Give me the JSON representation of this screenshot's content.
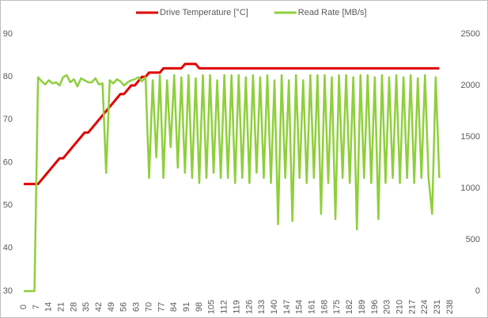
{
  "chart_data": {
    "type": "line",
    "x": [
      0,
      2,
      4,
      6,
      8,
      10,
      12,
      14,
      16,
      18,
      20,
      22,
      24,
      26,
      28,
      30,
      32,
      34,
      36,
      38,
      40,
      42,
      44,
      46,
      48,
      50,
      52,
      54,
      56,
      58,
      60,
      62,
      64,
      66,
      68,
      70,
      72,
      74,
      76,
      78,
      80,
      82,
      84,
      86,
      88,
      90,
      92,
      94,
      96,
      98,
      100,
      102,
      104,
      106,
      108,
      110,
      112,
      114,
      116,
      118,
      120,
      122,
      124,
      126,
      128,
      130,
      132,
      134,
      136,
      138,
      140,
      142,
      144,
      146,
      148,
      150,
      152,
      154,
      156,
      158,
      160,
      162,
      164,
      166,
      168,
      170,
      172,
      174,
      176,
      178,
      180,
      182,
      184,
      186,
      188,
      190,
      192,
      194,
      196,
      198,
      200,
      202,
      204,
      206,
      208,
      210,
      212,
      214,
      216,
      218,
      220,
      222,
      224,
      226,
      228,
      230,
      232
    ],
    "series": [
      {
        "name": "Drive Temperature [°C]",
        "color": "#e00000",
        "axis": "y",
        "values": [
          55,
          55,
          55,
          55,
          55,
          56,
          57,
          58,
          59,
          60,
          61,
          61,
          62,
          63,
          64,
          65,
          66,
          67,
          67,
          68,
          69,
          70,
          71,
          72,
          73,
          74,
          75,
          76,
          76,
          77,
          78,
          78,
          79,
          80,
          80,
          81,
          81,
          81,
          81,
          82,
          82,
          82,
          82,
          82,
          82,
          83,
          83,
          83,
          83,
          82,
          82,
          82,
          82,
          82,
          82,
          82,
          82,
          82,
          82,
          82,
          82,
          82,
          82,
          82,
          82,
          82,
          82,
          82,
          82,
          82,
          82,
          82,
          82,
          82,
          82,
          82,
          82,
          82,
          82,
          82,
          82,
          82,
          82,
          82,
          82,
          82,
          82,
          82,
          82,
          82,
          82,
          82,
          82,
          82,
          82,
          82,
          82,
          82,
          82,
          82,
          82,
          82,
          82,
          82,
          82,
          82,
          82,
          82,
          82,
          82,
          82,
          82,
          82,
          82,
          82,
          82,
          82
        ]
      },
      {
        "name": "Read Rate [MB/s]",
        "color": "#8fcf3c",
        "axis": "y2",
        "values": [
          0,
          0,
          0,
          0,
          2080,
          2040,
          2010,
          2050,
          2020,
          2030,
          2000,
          2080,
          2100,
          2030,
          2060,
          1990,
          2070,
          2050,
          2030,
          2030,
          2070,
          2010,
          2020,
          1150,
          2050,
          2020,
          2060,
          2040,
          2000,
          2030,
          2050,
          2060,
          2080,
          2040,
          2080,
          1100,
          2050,
          1300,
          2100,
          1100,
          2050,
          1400,
          2100,
          1200,
          2080,
          1150,
          2100,
          1100,
          2070,
          1050,
          2100,
          1100,
          2100,
          1150,
          2050,
          1100,
          2100,
          1100,
          2100,
          1050,
          2100,
          1100,
          2080,
          1050,
          2100,
          1150,
          2080,
          1100,
          2100,
          1050,
          2050,
          650,
          2100,
          1100,
          2050,
          680,
          2100,
          1100,
          2050,
          1050,
          2100,
          1100,
          2100,
          750,
          2100,
          1050,
          2080,
          700,
          2100,
          1100,
          2100,
          1050,
          2080,
          600,
          2100,
          1100,
          2100,
          1050,
          2080,
          700,
          2100,
          1050,
          2080,
          1100,
          2100,
          1050,
          2080,
          1100,
          2100,
          1050,
          2070,
          1100,
          2100,
          1100,
          750,
          2080,
          1100
        ]
      }
    ],
    "xlim": [
      0,
      238
    ],
    "xticks": [
      0,
      7,
      14,
      21,
      28,
      35,
      42,
      49,
      56,
      63,
      70,
      77,
      84,
      91,
      98,
      105,
      112,
      119,
      126,
      133,
      140,
      147,
      154,
      161,
      168,
      175,
      182,
      189,
      196,
      203,
      210,
      217,
      224,
      231,
      238
    ],
    "ylim": [
      30,
      90
    ],
    "yticks": [
      30,
      40,
      50,
      60,
      70,
      80,
      90
    ],
    "y2lim": [
      0,
      2500
    ],
    "y2ticks": [
      0,
      500,
      1000,
      1500,
      2000,
      2500
    ],
    "grid": false,
    "legend": "top"
  }
}
